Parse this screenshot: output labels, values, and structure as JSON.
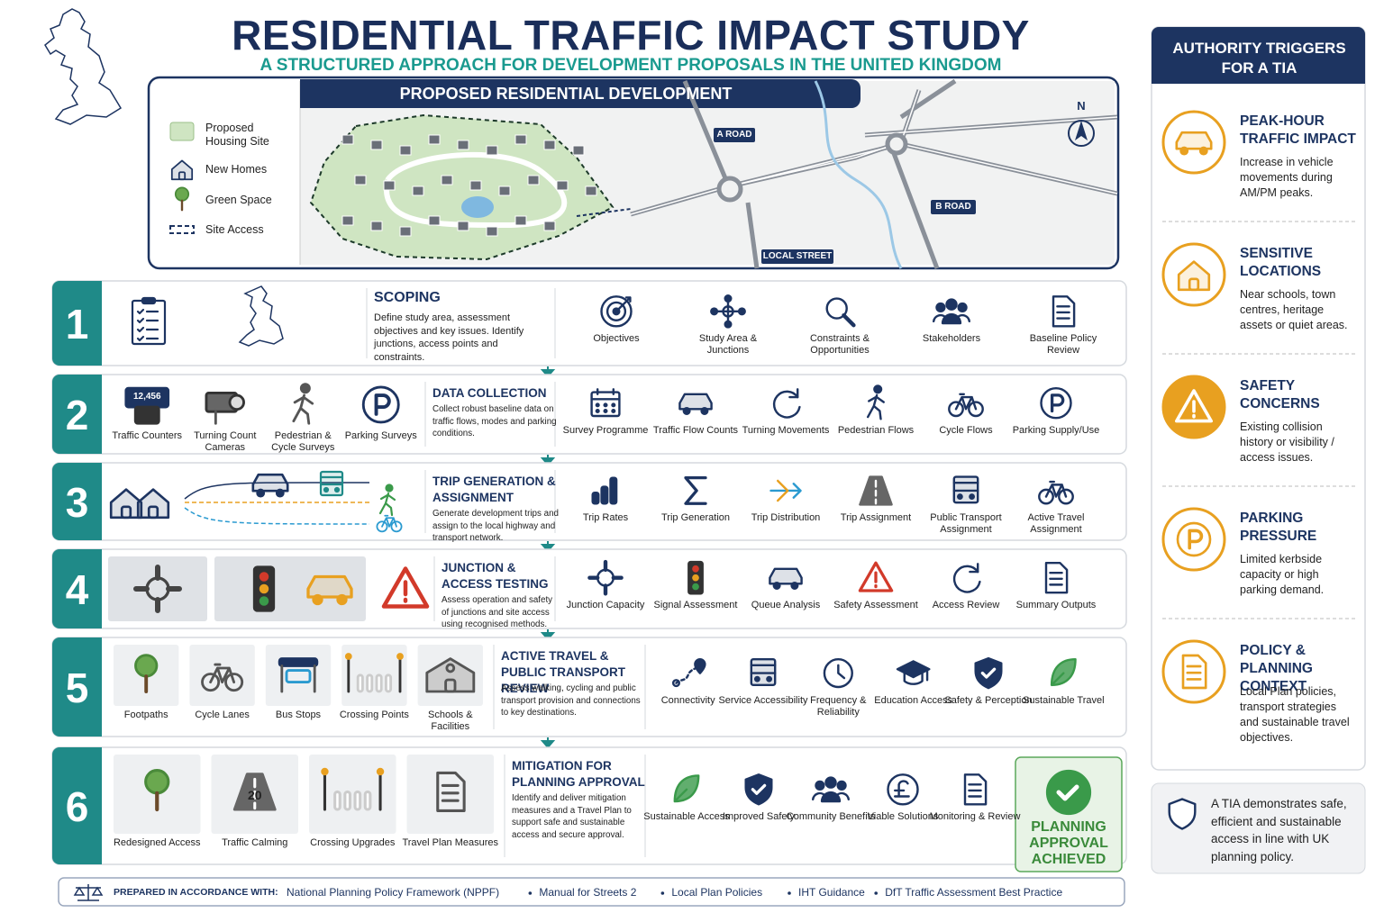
{
  "header": {
    "title": "RESIDENTIAL TRAFFIC IMPACT STUDY",
    "subtitle": "A STRUCTURED APPROACH FOR DEVELOPMENT PROPOSALS IN THE UNITED KINGDOM"
  },
  "map": {
    "title": "PROPOSED RESIDENTIAL DEVELOPMENT",
    "legend": [
      "Proposed Housing Site",
      "New Homes",
      "Green Space",
      "Site Access"
    ],
    "road_labels": [
      "A ROAD",
      "B ROAD",
      "LOCAL STREET"
    ],
    "north": "N"
  },
  "steps": [
    {
      "number": 1,
      "title": "SCOPING",
      "text": "Define study area, assessment objectives and key issues. Identify junctions, access points and constraints.",
      "left_items": [],
      "items": [
        "Objectives",
        "Study Area & Junctions",
        "Constraints & Opportunities",
        "Stakeholders",
        "Baseline Policy Review"
      ]
    },
    {
      "number": 2,
      "title": "DATA COLLECTION",
      "text": "Collect robust baseline data on traffic flows, modes and parking conditions.",
      "left_items": [
        {
          "label": "Traffic Counters",
          "display": "12,456"
        },
        {
          "label": "Turning Count Cameras"
        },
        {
          "label": "Pedestrian & Cycle Surveys"
        },
        {
          "label": "Parking Surveys"
        }
      ],
      "items": [
        "Survey Programme",
        "Traffic Flow Counts",
        "Turning Movements",
        "Pedestrian Flows",
        "Cycle Flows",
        "Parking Supply/Use"
      ]
    },
    {
      "number": 3,
      "title": "TRIP GENERATION & ASSIGNMENT",
      "text": "Generate development trips and assign to the local highway and transport network.",
      "left_items": [],
      "items": [
        "Trip Rates",
        "Trip Generation",
        "Trip Distribution",
        "Trip Assignment",
        "Public Transport Assignment",
        "Active Travel Assignment"
      ]
    },
    {
      "number": 4,
      "title": "JUNCTION & ACCESS TESTING",
      "text": "Assess operation and safety of junctions and site access using recognised methods.",
      "left_items": [],
      "items": [
        "Junction Capacity",
        "Signal Assessment",
        "Queue Analysis",
        "Safety Assessment",
        "Access Review",
        "Summary Outputs"
      ]
    },
    {
      "number": 5,
      "title": "ACTIVE TRAVEL & PUBLIC TRANSPORT REVIEW",
      "text": "Assess walking, cycling and public transport provision and connections to key destinations.",
      "left_items": [
        {
          "label": "Footpaths"
        },
        {
          "label": "Cycle Lanes"
        },
        {
          "label": "Bus Stops"
        },
        {
          "label": "Crossing Points"
        },
        {
          "label": "Schools & Facilities"
        }
      ],
      "items": [
        "Connectivity",
        "Service Accessibility",
        "Frequency & Reliability",
        "Education Access",
        "Safety & Perception",
        "Sustainable Travel"
      ]
    },
    {
      "number": 6,
      "title": "MITIGATION FOR PLANNING APPROVAL",
      "text": "Identify and deliver mitigation measures and a Travel Plan to support safe and sustainable access and secure approval.",
      "left_items": [
        {
          "label": "Redesigned Access"
        },
        {
          "label": "Traffic Calming",
          "display": "20"
        },
        {
          "label": "Crossing Upgrades"
        },
        {
          "label": "Travel Plan Measures"
        }
      ],
      "items": [
        "Sustainable Access",
        "Improved Safety",
        "Community Benefits",
        "Viable Solutions",
        "Monitoring & Review"
      ]
    }
  ],
  "approval": "PLANNING APPROVAL ACHIEVED",
  "sidebar": {
    "title": "AUTHORITY TRIGGERS FOR A TIA",
    "triggers": [
      {
        "title": "PEAK-HOUR TRAFFIC IMPACT",
        "text": "Increase in vehicle movements during AM/PM peaks."
      },
      {
        "title": "SENSITIVE LOCATIONS",
        "text": "Near schools, town centres, heritage assets or quiet areas."
      },
      {
        "title": "SAFETY CONCERNS",
        "text": "Existing collision history or visibility / access issues."
      },
      {
        "title": "PARKING PRESSURE",
        "text": "Limited kerbside capacity or high parking demand."
      },
      {
        "title": "POLICY & PLANNING CONTEXT",
        "text": "Local Plan policies, transport strategies and sustainable travel objectives."
      }
    ],
    "note": "A TIA demonstrates safe, efficient and sustainable access in line with UK planning policy."
  },
  "footer": {
    "label": "PREPARED IN ACCORDANCE WITH:",
    "items": [
      "National Planning Policy Framework (NPPF)",
      "Manual for Streets 2",
      "Local Plan Policies",
      "IHT Guidance",
      "DfT Traffic Assessment Best Practice"
    ]
  }
}
